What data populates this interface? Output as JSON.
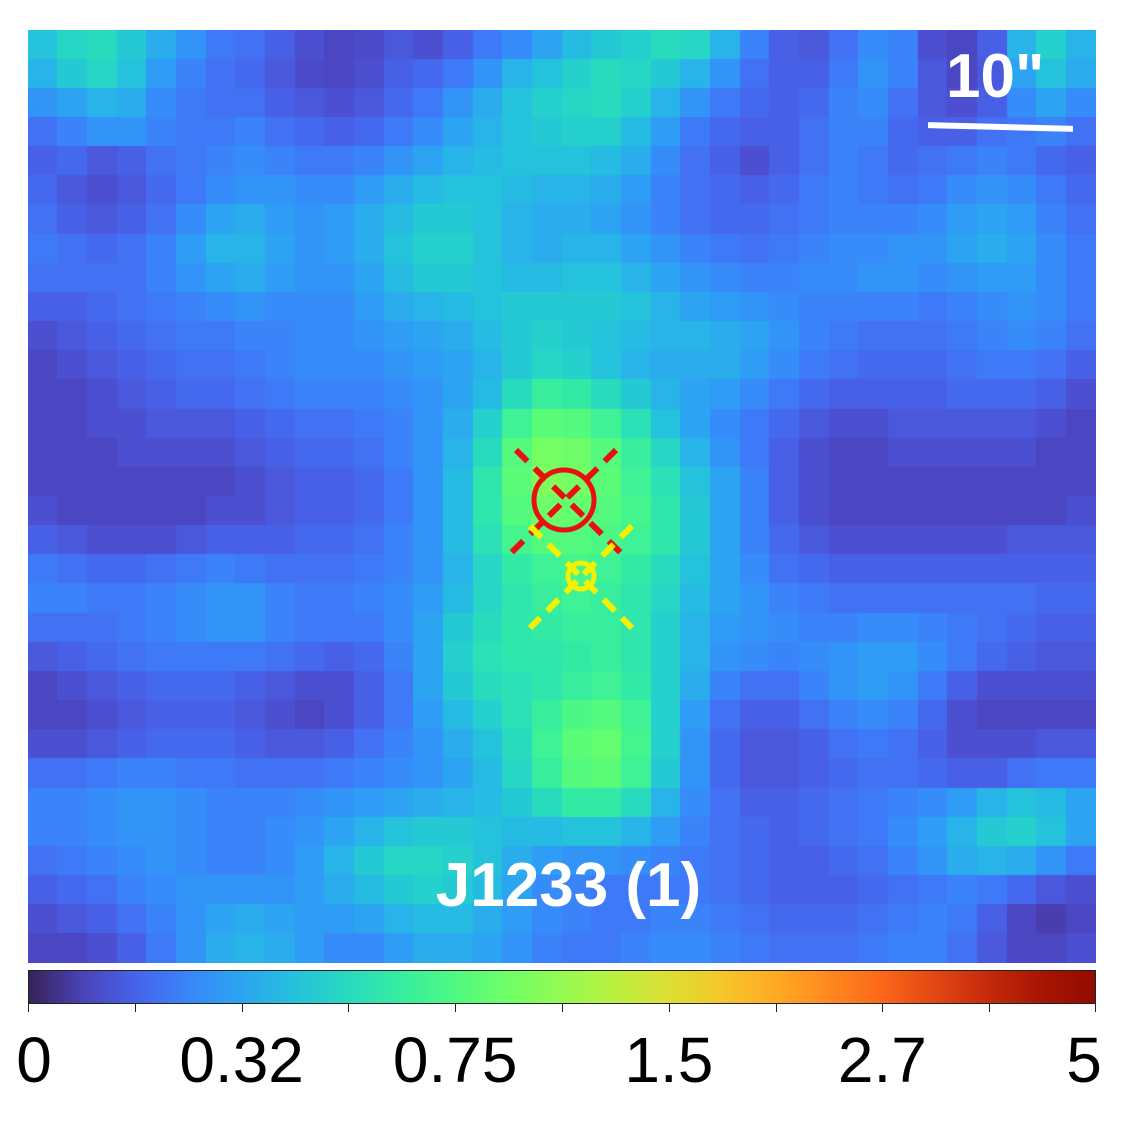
{
  "image": {
    "kind": "astronomical intensity map",
    "colormap": "turbo",
    "grid": {
      "cols": 36,
      "rows": 32
    },
    "intensity": [
      [
        0.34,
        0.4,
        0.42,
        0.36,
        0.28,
        0.22,
        0.16,
        0.14,
        0.1,
        0.06,
        0.04,
        0.05,
        0.08,
        0.06,
        0.1,
        0.16,
        0.2,
        0.26,
        0.32,
        0.36,
        0.38,
        0.42,
        0.4,
        0.3,
        0.18,
        0.1,
        0.08,
        0.14,
        0.2,
        0.18,
        0.06,
        0.04,
        0.1,
        0.3,
        0.38,
        0.3
      ],
      [
        0.3,
        0.36,
        0.4,
        0.34,
        0.24,
        0.18,
        0.14,
        0.12,
        0.08,
        0.05,
        0.04,
        0.06,
        0.1,
        0.12,
        0.16,
        0.22,
        0.3,
        0.34,
        0.38,
        0.42,
        0.4,
        0.36,
        0.3,
        0.22,
        0.14,
        0.1,
        0.1,
        0.16,
        0.22,
        0.18,
        0.08,
        0.04,
        0.08,
        0.26,
        0.34,
        0.28
      ],
      [
        0.22,
        0.26,
        0.3,
        0.28,
        0.2,
        0.16,
        0.14,
        0.14,
        0.1,
        0.08,
        0.06,
        0.08,
        0.12,
        0.16,
        0.22,
        0.28,
        0.34,
        0.38,
        0.4,
        0.42,
        0.38,
        0.3,
        0.22,
        0.16,
        0.12,
        0.1,
        0.12,
        0.18,
        0.2,
        0.14,
        0.08,
        0.06,
        0.1,
        0.2,
        0.26,
        0.2
      ],
      [
        0.14,
        0.18,
        0.22,
        0.22,
        0.18,
        0.16,
        0.16,
        0.18,
        0.14,
        0.12,
        0.1,
        0.12,
        0.16,
        0.2,
        0.26,
        0.3,
        0.34,
        0.36,
        0.38,
        0.38,
        0.32,
        0.24,
        0.16,
        0.12,
        0.1,
        0.1,
        0.14,
        0.18,
        0.18,
        0.12,
        0.1,
        0.1,
        0.14,
        0.16,
        0.18,
        0.14
      ],
      [
        0.1,
        0.12,
        0.08,
        0.1,
        0.14,
        0.16,
        0.18,
        0.2,
        0.18,
        0.16,
        0.16,
        0.18,
        0.22,
        0.26,
        0.3,
        0.32,
        0.34,
        0.34,
        0.34,
        0.32,
        0.28,
        0.2,
        0.14,
        0.1,
        0.06,
        0.1,
        0.14,
        0.18,
        0.16,
        0.12,
        0.14,
        0.16,
        0.18,
        0.16,
        0.12,
        0.1
      ],
      [
        0.12,
        0.08,
        0.06,
        0.08,
        0.12,
        0.16,
        0.2,
        0.22,
        0.22,
        0.2,
        0.2,
        0.24,
        0.28,
        0.32,
        0.34,
        0.34,
        0.32,
        0.3,
        0.3,
        0.28,
        0.24,
        0.18,
        0.14,
        0.12,
        0.1,
        0.12,
        0.16,
        0.18,
        0.16,
        0.14,
        0.16,
        0.2,
        0.22,
        0.2,
        0.16,
        0.12
      ],
      [
        0.14,
        0.1,
        0.08,
        0.1,
        0.14,
        0.2,
        0.26,
        0.28,
        0.24,
        0.22,
        0.24,
        0.28,
        0.32,
        0.36,
        0.36,
        0.34,
        0.3,
        0.28,
        0.28,
        0.26,
        0.22,
        0.18,
        0.14,
        0.12,
        0.12,
        0.14,
        0.16,
        0.18,
        0.18,
        0.18,
        0.2,
        0.24,
        0.26,
        0.24,
        0.18,
        0.14
      ],
      [
        0.16,
        0.14,
        0.12,
        0.14,
        0.18,
        0.24,
        0.3,
        0.3,
        0.26,
        0.22,
        0.24,
        0.28,
        0.34,
        0.38,
        0.38,
        0.34,
        0.3,
        0.28,
        0.3,
        0.3,
        0.26,
        0.22,
        0.18,
        0.16,
        0.14,
        0.16,
        0.18,
        0.2,
        0.2,
        0.22,
        0.22,
        0.26,
        0.28,
        0.26,
        0.2,
        0.16
      ],
      [
        0.14,
        0.14,
        0.14,
        0.14,
        0.18,
        0.22,
        0.26,
        0.28,
        0.24,
        0.22,
        0.22,
        0.26,
        0.32,
        0.36,
        0.36,
        0.34,
        0.32,
        0.32,
        0.34,
        0.34,
        0.3,
        0.26,
        0.22,
        0.2,
        0.18,
        0.18,
        0.2,
        0.2,
        0.22,
        0.22,
        0.2,
        0.22,
        0.24,
        0.24,
        0.2,
        0.16
      ],
      [
        0.1,
        0.1,
        0.12,
        0.14,
        0.16,
        0.18,
        0.2,
        0.22,
        0.2,
        0.2,
        0.2,
        0.24,
        0.28,
        0.3,
        0.32,
        0.34,
        0.36,
        0.36,
        0.36,
        0.36,
        0.34,
        0.3,
        0.26,
        0.24,
        0.22,
        0.2,
        0.18,
        0.18,
        0.18,
        0.18,
        0.16,
        0.18,
        0.2,
        0.22,
        0.2,
        0.16
      ],
      [
        0.06,
        0.08,
        0.1,
        0.12,
        0.14,
        0.16,
        0.16,
        0.18,
        0.18,
        0.2,
        0.2,
        0.22,
        0.24,
        0.26,
        0.28,
        0.32,
        0.36,
        0.38,
        0.36,
        0.34,
        0.32,
        0.3,
        0.3,
        0.28,
        0.26,
        0.22,
        0.18,
        0.16,
        0.14,
        0.14,
        0.14,
        0.16,
        0.18,
        0.2,
        0.18,
        0.14
      ],
      [
        0.04,
        0.06,
        0.08,
        0.1,
        0.12,
        0.14,
        0.14,
        0.16,
        0.18,
        0.2,
        0.2,
        0.2,
        0.22,
        0.24,
        0.26,
        0.3,
        0.36,
        0.4,
        0.38,
        0.34,
        0.3,
        0.28,
        0.28,
        0.28,
        0.24,
        0.2,
        0.16,
        0.14,
        0.12,
        0.12,
        0.12,
        0.14,
        0.16,
        0.16,
        0.14,
        0.1
      ],
      [
        0.04,
        0.04,
        0.06,
        0.08,
        0.1,
        0.12,
        0.12,
        0.14,
        0.16,
        0.18,
        0.18,
        0.18,
        0.2,
        0.22,
        0.26,
        0.32,
        0.42,
        0.5,
        0.48,
        0.42,
        0.36,
        0.3,
        0.26,
        0.24,
        0.2,
        0.16,
        0.12,
        0.1,
        0.1,
        0.1,
        0.1,
        0.12,
        0.12,
        0.12,
        0.1,
        0.06
      ],
      [
        0.04,
        0.04,
        0.06,
        0.06,
        0.08,
        0.08,
        0.08,
        0.1,
        0.12,
        0.14,
        0.14,
        0.16,
        0.18,
        0.22,
        0.28,
        0.38,
        0.52,
        0.6,
        0.58,
        0.52,
        0.44,
        0.34,
        0.26,
        0.2,
        0.16,
        0.12,
        0.08,
        0.06,
        0.06,
        0.08,
        0.08,
        0.08,
        0.08,
        0.08,
        0.06,
        0.04
      ],
      [
        0.04,
        0.04,
        0.04,
        0.06,
        0.06,
        0.06,
        0.06,
        0.08,
        0.1,
        0.12,
        0.12,
        0.14,
        0.18,
        0.22,
        0.3,
        0.42,
        0.58,
        0.66,
        0.64,
        0.58,
        0.5,
        0.4,
        0.3,
        0.22,
        0.16,
        0.1,
        0.06,
        0.04,
        0.04,
        0.06,
        0.06,
        0.06,
        0.06,
        0.06,
        0.04,
        0.04
      ],
      [
        0.04,
        0.04,
        0.04,
        0.04,
        0.04,
        0.04,
        0.04,
        0.06,
        0.08,
        0.1,
        0.1,
        0.12,
        0.16,
        0.22,
        0.32,
        0.46,
        0.6,
        0.68,
        0.66,
        0.6,
        0.52,
        0.44,
        0.34,
        0.26,
        0.18,
        0.1,
        0.06,
        0.04,
        0.04,
        0.04,
        0.04,
        0.04,
        0.04,
        0.04,
        0.04,
        0.04
      ],
      [
        0.06,
        0.04,
        0.04,
        0.04,
        0.04,
        0.04,
        0.06,
        0.06,
        0.08,
        0.1,
        0.1,
        0.12,
        0.16,
        0.22,
        0.32,
        0.46,
        0.58,
        0.64,
        0.62,
        0.58,
        0.54,
        0.46,
        0.36,
        0.26,
        0.18,
        0.1,
        0.06,
        0.04,
        0.04,
        0.04,
        0.04,
        0.04,
        0.04,
        0.04,
        0.04,
        0.06
      ],
      [
        0.1,
        0.08,
        0.06,
        0.06,
        0.06,
        0.08,
        0.1,
        0.1,
        0.1,
        0.12,
        0.12,
        0.14,
        0.18,
        0.22,
        0.32,
        0.44,
        0.54,
        0.58,
        0.58,
        0.56,
        0.52,
        0.46,
        0.36,
        0.26,
        0.18,
        0.12,
        0.08,
        0.06,
        0.06,
        0.06,
        0.06,
        0.06,
        0.06,
        0.08,
        0.08,
        0.08
      ],
      [
        0.16,
        0.14,
        0.12,
        0.12,
        0.14,
        0.16,
        0.18,
        0.16,
        0.14,
        0.14,
        0.14,
        0.16,
        0.18,
        0.22,
        0.3,
        0.4,
        0.48,
        0.52,
        0.54,
        0.52,
        0.48,
        0.42,
        0.34,
        0.26,
        0.2,
        0.14,
        0.12,
        0.1,
        0.1,
        0.1,
        0.1,
        0.1,
        0.1,
        0.1,
        0.1,
        0.1
      ],
      [
        0.18,
        0.18,
        0.16,
        0.16,
        0.18,
        0.2,
        0.22,
        0.22,
        0.18,
        0.16,
        0.16,
        0.18,
        0.2,
        0.24,
        0.32,
        0.4,
        0.46,
        0.5,
        0.52,
        0.5,
        0.46,
        0.4,
        0.32,
        0.26,
        0.22,
        0.18,
        0.16,
        0.14,
        0.14,
        0.14,
        0.14,
        0.14,
        0.14,
        0.14,
        0.12,
        0.12
      ],
      [
        0.14,
        0.14,
        0.14,
        0.16,
        0.18,
        0.2,
        0.22,
        0.22,
        0.18,
        0.16,
        0.16,
        0.16,
        0.2,
        0.26,
        0.36,
        0.42,
        0.46,
        0.48,
        0.5,
        0.5,
        0.46,
        0.38,
        0.3,
        0.24,
        0.22,
        0.2,
        0.18,
        0.18,
        0.2,
        0.2,
        0.18,
        0.16,
        0.14,
        0.12,
        0.1,
        0.1
      ],
      [
        0.08,
        0.1,
        0.12,
        0.14,
        0.16,
        0.16,
        0.16,
        0.16,
        0.14,
        0.12,
        0.1,
        0.12,
        0.18,
        0.26,
        0.38,
        0.44,
        0.46,
        0.46,
        0.48,
        0.5,
        0.46,
        0.38,
        0.3,
        0.22,
        0.2,
        0.18,
        0.2,
        0.22,
        0.24,
        0.24,
        0.2,
        0.16,
        0.12,
        0.1,
        0.08,
        0.08
      ],
      [
        0.04,
        0.06,
        0.08,
        0.1,
        0.12,
        0.12,
        0.12,
        0.1,
        0.08,
        0.06,
        0.06,
        0.1,
        0.16,
        0.26,
        0.36,
        0.42,
        0.44,
        0.46,
        0.5,
        0.52,
        0.48,
        0.38,
        0.28,
        0.18,
        0.14,
        0.14,
        0.18,
        0.22,
        0.24,
        0.22,
        0.16,
        0.1,
        0.06,
        0.06,
        0.06,
        0.06
      ],
      [
        0.04,
        0.04,
        0.06,
        0.08,
        0.1,
        0.1,
        0.1,
        0.08,
        0.06,
        0.04,
        0.06,
        0.1,
        0.16,
        0.24,
        0.32,
        0.38,
        0.44,
        0.5,
        0.56,
        0.58,
        0.52,
        0.38,
        0.24,
        0.14,
        0.1,
        0.1,
        0.14,
        0.18,
        0.2,
        0.18,
        0.12,
        0.06,
        0.04,
        0.04,
        0.04,
        0.04
      ],
      [
        0.06,
        0.06,
        0.08,
        0.1,
        0.12,
        0.12,
        0.12,
        0.1,
        0.08,
        0.08,
        0.1,
        0.14,
        0.18,
        0.22,
        0.28,
        0.34,
        0.42,
        0.52,
        0.6,
        0.62,
        0.54,
        0.38,
        0.22,
        0.12,
        0.08,
        0.08,
        0.1,
        0.14,
        0.16,
        0.14,
        0.1,
        0.06,
        0.06,
        0.06,
        0.08,
        0.08
      ],
      [
        0.14,
        0.14,
        0.16,
        0.18,
        0.18,
        0.16,
        0.16,
        0.14,
        0.14,
        0.14,
        0.16,
        0.18,
        0.2,
        0.22,
        0.26,
        0.32,
        0.4,
        0.5,
        0.58,
        0.6,
        0.52,
        0.36,
        0.22,
        0.12,
        0.08,
        0.08,
        0.1,
        0.12,
        0.14,
        0.14,
        0.12,
        0.1,
        0.1,
        0.14,
        0.16,
        0.16
      ],
      [
        0.18,
        0.18,
        0.2,
        0.22,
        0.22,
        0.2,
        0.18,
        0.18,
        0.18,
        0.2,
        0.22,
        0.24,
        0.26,
        0.28,
        0.3,
        0.32,
        0.36,
        0.42,
        0.48,
        0.48,
        0.42,
        0.3,
        0.2,
        0.14,
        0.1,
        0.1,
        0.12,
        0.14,
        0.16,
        0.18,
        0.2,
        0.24,
        0.3,
        0.34,
        0.32,
        0.26
      ],
      [
        0.18,
        0.18,
        0.2,
        0.22,
        0.22,
        0.2,
        0.18,
        0.18,
        0.2,
        0.22,
        0.26,
        0.3,
        0.34,
        0.36,
        0.36,
        0.34,
        0.32,
        0.32,
        0.34,
        0.34,
        0.3,
        0.24,
        0.18,
        0.14,
        0.12,
        0.1,
        0.12,
        0.14,
        0.16,
        0.2,
        0.24,
        0.3,
        0.36,
        0.38,
        0.34,
        0.26
      ],
      [
        0.14,
        0.16,
        0.18,
        0.2,
        0.22,
        0.2,
        0.18,
        0.18,
        0.2,
        0.24,
        0.3,
        0.36,
        0.4,
        0.4,
        0.38,
        0.34,
        0.28,
        0.24,
        0.22,
        0.22,
        0.2,
        0.18,
        0.16,
        0.14,
        0.12,
        0.1,
        0.1,
        0.12,
        0.14,
        0.18,
        0.22,
        0.28,
        0.3,
        0.28,
        0.22,
        0.16
      ],
      [
        0.1,
        0.12,
        0.14,
        0.18,
        0.2,
        0.22,
        0.22,
        0.22,
        0.22,
        0.24,
        0.28,
        0.32,
        0.36,
        0.38,
        0.36,
        0.32,
        0.26,
        0.2,
        0.18,
        0.16,
        0.16,
        0.16,
        0.16,
        0.14,
        0.12,
        0.1,
        0.1,
        0.1,
        0.12,
        0.14,
        0.16,
        0.18,
        0.16,
        0.12,
        0.08,
        0.06
      ],
      [
        0.06,
        0.08,
        0.1,
        0.14,
        0.18,
        0.22,
        0.26,
        0.28,
        0.26,
        0.24,
        0.24,
        0.26,
        0.3,
        0.32,
        0.32,
        0.28,
        0.24,
        0.2,
        0.18,
        0.16,
        0.16,
        0.18,
        0.18,
        0.16,
        0.14,
        0.12,
        0.12,
        0.12,
        0.14,
        0.16,
        0.18,
        0.16,
        0.1,
        0.04,
        0.02,
        0.04
      ],
      [
        0.04,
        0.04,
        0.06,
        0.1,
        0.16,
        0.22,
        0.28,
        0.3,
        0.28,
        0.24,
        0.2,
        0.2,
        0.24,
        0.28,
        0.28,
        0.26,
        0.22,
        0.18,
        0.16,
        0.16,
        0.18,
        0.2,
        0.2,
        0.18,
        0.16,
        0.14,
        0.14,
        0.14,
        0.16,
        0.18,
        0.18,
        0.14,
        0.08,
        0.04,
        0.04,
        0.06
      ]
    ]
  },
  "labels": {
    "scale_text": "10\"",
    "object_name": "J1233 (1)"
  },
  "markers": [
    {
      "name": "red-marker",
      "color": "#e81010",
      "shape": "circle-cross"
    },
    {
      "name": "yellow-marker",
      "color": "#f5f000",
      "shape": "circle-cross"
    }
  ],
  "colorbar": {
    "colormap": "turbo",
    "tick_labels": [
      "0",
      "0.32",
      "0.75",
      "1.5",
      "2.7",
      "5"
    ]
  }
}
